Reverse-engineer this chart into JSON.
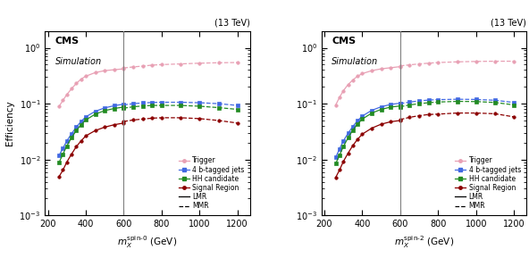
{
  "spin0": {
    "xlabel": "$m_{X}^{\\rm spin\\text{-}0}$ (GeV)",
    "trigger_lmr_x": [
      260,
      280,
      300,
      325,
      350,
      375,
      400,
      450,
      500,
      550,
      600
    ],
    "trigger_lmr_y": [
      0.09,
      0.115,
      0.145,
      0.185,
      0.23,
      0.275,
      0.31,
      0.36,
      0.39,
      0.405,
      0.42
    ],
    "trigger_mmr_x": [
      600,
      650,
      700,
      750,
      800,
      900,
      1000,
      1100,
      1200
    ],
    "trigger_mmr_y": [
      0.435,
      0.455,
      0.47,
      0.49,
      0.5,
      0.515,
      0.53,
      0.54,
      0.545
    ],
    "btag_lmr_x": [
      260,
      280,
      300,
      325,
      350,
      375,
      400,
      450,
      500,
      550,
      600
    ],
    "btag_lmr_y": [
      0.012,
      0.016,
      0.0215,
      0.029,
      0.038,
      0.048,
      0.058,
      0.073,
      0.084,
      0.092,
      0.098
    ],
    "btag_mmr_x": [
      600,
      650,
      700,
      750,
      800,
      900,
      1000,
      1100,
      1200
    ],
    "btag_mmr_y": [
      0.095,
      0.1,
      0.103,
      0.105,
      0.106,
      0.106,
      0.104,
      0.1,
      0.093
    ],
    "hh_lmr_x": [
      260,
      280,
      300,
      325,
      350,
      375,
      400,
      450,
      500,
      550,
      600
    ],
    "hh_lmr_y": [
      0.009,
      0.0125,
      0.0175,
      0.0245,
      0.033,
      0.042,
      0.051,
      0.065,
      0.075,
      0.082,
      0.087
    ],
    "hh_mmr_x": [
      600,
      650,
      700,
      750,
      800,
      900,
      1000,
      1100,
      1200
    ],
    "hh_mmr_y": [
      0.083,
      0.088,
      0.091,
      0.093,
      0.093,
      0.093,
      0.09,
      0.085,
      0.079
    ],
    "sr_lmr_x": [
      260,
      280,
      300,
      325,
      350,
      375,
      400,
      450,
      500,
      550,
      600
    ],
    "sr_lmr_y": [
      0.005,
      0.0065,
      0.009,
      0.0125,
      0.017,
      0.0215,
      0.0265,
      0.033,
      0.038,
      0.042,
      0.045
    ],
    "sr_mmr_x": [
      600,
      650,
      700,
      750,
      800,
      900,
      1000,
      1100,
      1200
    ],
    "sr_mmr_y": [
      0.048,
      0.051,
      0.053,
      0.055,
      0.056,
      0.056,
      0.054,
      0.05,
      0.045
    ]
  },
  "spin2": {
    "xlabel": "$m_{X}^{\\rm spin\\text{-}2}$ (GeV)",
    "trigger_lmr_x": [
      260,
      280,
      300,
      325,
      350,
      375,
      400,
      450,
      500,
      550,
      600
    ],
    "trigger_lmr_y": [
      0.095,
      0.13,
      0.17,
      0.22,
      0.265,
      0.31,
      0.345,
      0.39,
      0.42,
      0.44,
      0.46
    ],
    "trigger_mmr_x": [
      600,
      650,
      700,
      750,
      800,
      900,
      1000,
      1100,
      1200
    ],
    "trigger_mmr_y": [
      0.475,
      0.495,
      0.515,
      0.53,
      0.545,
      0.56,
      0.57,
      0.575,
      0.575
    ],
    "btag_lmr_x": [
      260,
      280,
      300,
      325,
      350,
      375,
      400,
      450,
      500,
      550,
      600
    ],
    "btag_lmr_y": [
      0.011,
      0.0155,
      0.0215,
      0.0295,
      0.039,
      0.0495,
      0.06,
      0.076,
      0.088,
      0.097,
      0.102
    ],
    "btag_mmr_x": [
      600,
      650,
      700,
      750,
      800,
      900,
      1000,
      1100,
      1200
    ],
    "btag_mmr_y": [
      0.1,
      0.107,
      0.112,
      0.116,
      0.118,
      0.12,
      0.119,
      0.115,
      0.105
    ],
    "hh_lmr_x": [
      260,
      280,
      300,
      325,
      350,
      375,
      400,
      450,
      500,
      550,
      600
    ],
    "hh_lmr_y": [
      0.0085,
      0.012,
      0.017,
      0.0245,
      0.0335,
      0.043,
      0.053,
      0.068,
      0.079,
      0.087,
      0.091
    ],
    "hh_mmr_x": [
      600,
      650,
      700,
      750,
      800,
      900,
      1000,
      1100,
      1200
    ],
    "hh_mmr_y": [
      0.088,
      0.095,
      0.1,
      0.104,
      0.107,
      0.11,
      0.109,
      0.105,
      0.095
    ],
    "sr_lmr_x": [
      260,
      280,
      300,
      325,
      350,
      375,
      400,
      450,
      500,
      550,
      600
    ],
    "sr_lmr_y": [
      0.0048,
      0.0065,
      0.0092,
      0.013,
      0.0178,
      0.023,
      0.0285,
      0.0365,
      0.043,
      0.0475,
      0.05
    ],
    "sr_mmr_x": [
      600,
      650,
      700,
      750,
      800,
      900,
      1000,
      1100,
      1200
    ],
    "sr_mmr_y": [
      0.052,
      0.057,
      0.061,
      0.064,
      0.065,
      0.068,
      0.068,
      0.066,
      0.058
    ]
  },
  "vline_x": 600,
  "xlim": [
    185,
    1265
  ],
  "ylim": [
    0.001,
    2.0
  ],
  "energy_label": "(13 TeV)",
  "cms_label": "CMS",
  "sim_label": "Simulation",
  "ylabel": "Efficiency",
  "legend_labels": [
    "Trigger",
    "4 b-tagged jets",
    "HH candidate",
    "Signal Region",
    "LMR",
    "MMR"
  ],
  "colors": {
    "trigger": "#e8a0b4",
    "btag": "#4169e1",
    "hh": "#228B22",
    "sr": "#8B0000"
  }
}
